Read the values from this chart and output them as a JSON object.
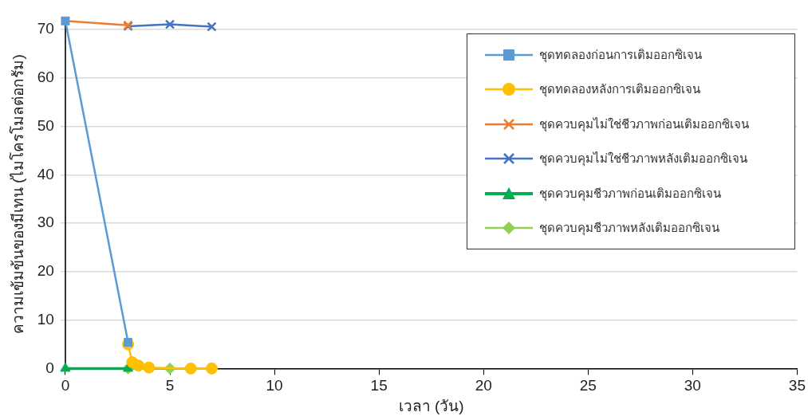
{
  "chart_data": {
    "type": "line",
    "xlabel": "เวลา (วัน)",
    "ylabel": "ความเข้มข้นของมีเทน (ไมโครโมลต่อกรัม)",
    "xlim": [
      0,
      35
    ],
    "xticks": [
      0,
      5,
      10,
      15,
      20,
      25,
      30,
      35
    ],
    "ylim": [
      0,
      72
    ],
    "yticks": [
      0,
      10,
      20,
      30,
      40,
      50,
      60,
      70
    ],
    "grid": "y",
    "legend": "top right",
    "series": [
      {
        "name": "ชุดทดลองก่อนการเติมออกซิเจน",
        "color": "#5b9bd5",
        "marker": "square",
        "x": [
          0,
          3
        ],
        "values": [
          71.8,
          5.4
        ]
      },
      {
        "name": "ชุดทดลองหลังการเติมออกซิเจน",
        "color": "#ffc000",
        "marker": "circle",
        "x": [
          3,
          3.2,
          3.5,
          4,
          6,
          7
        ],
        "values": [
          5,
          1.3,
          0.6,
          0.2,
          0,
          0
        ]
      },
      {
        "name": "ชุดควบคุมไม่ใช่ชีวภาพก่อนเติมออกซิเจน",
        "color": "#ed7d31",
        "marker": "cross",
        "x": [
          0,
          3
        ],
        "values": [
          71.8,
          70.9
        ]
      },
      {
        "name": "ชุดควบคุมไม่ใช่ชีวภาพหลังเติมออกซิเจน",
        "color": "#4472c4",
        "marker": "cross",
        "x": [
          3,
          5,
          7
        ],
        "values": [
          70.7,
          71.1,
          70.6
        ]
      },
      {
        "name": "ชุดควบคุมชีวภาพก่อนเติมออกซิเจน",
        "color": "#00b050",
        "marker": "triangle",
        "x": [
          0,
          3
        ],
        "values": [
          0,
          0
        ]
      },
      {
        "name": "ชุดควบคุมชีวภาพหลังเติมออกซิเจน",
        "color": "#92d050",
        "marker": "diamond",
        "x": [
          3,
          5,
          7
        ],
        "values": [
          0,
          0,
          0
        ]
      }
    ]
  }
}
